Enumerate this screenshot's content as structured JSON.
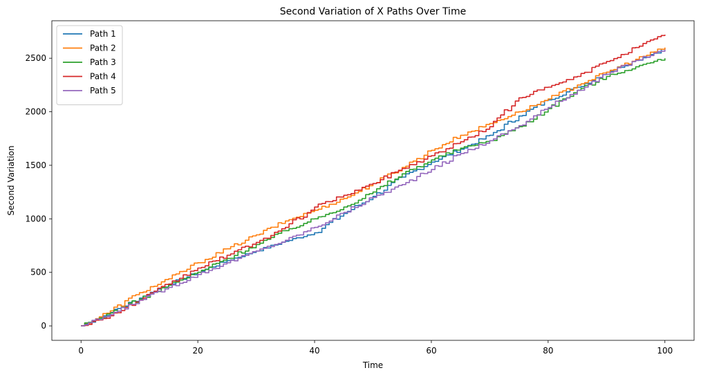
{
  "chart_data": {
    "type": "line",
    "title": "Second Variation of X Paths Over Time",
    "xlabel": "Time",
    "ylabel": "Second Variation",
    "xlim": [
      -5,
      105
    ],
    "ylim": [
      -135,
      2850
    ],
    "xticks": [
      0,
      20,
      40,
      60,
      80,
      100
    ],
    "yticks": [
      0,
      500,
      1000,
      1500,
      2000,
      2500
    ],
    "grid": false,
    "legend_position": "top-left",
    "x": [
      0,
      5,
      10,
      15,
      20,
      25,
      30,
      35,
      40,
      45,
      50,
      55,
      60,
      65,
      70,
      75,
      80,
      85,
      90,
      95,
      100
    ],
    "series": [
      {
        "name": "Path 1",
        "color": "#1f77b4",
        "values": [
          0,
          125,
          260,
          390,
          500,
          610,
          700,
          790,
          870,
          1050,
          1210,
          1390,
          1530,
          1650,
          1780,
          1960,
          2110,
          2230,
          2370,
          2480,
          2590
        ]
      },
      {
        "name": "Path 2",
        "color": "#ff7f0e",
        "values": [
          0,
          140,
          310,
          440,
          590,
          720,
          850,
          980,
          1080,
          1190,
          1330,
          1480,
          1640,
          1780,
          1890,
          2000,
          2120,
          2250,
          2370,
          2490,
          2600
        ]
      },
      {
        "name": "Path 3",
        "color": "#2ca02c",
        "values": [
          0,
          120,
          250,
          380,
          500,
          630,
          760,
          890,
          1000,
          1110,
          1250,
          1420,
          1550,
          1660,
          1730,
          1860,
          2030,
          2200,
          2330,
          2420,
          2500
        ]
      },
      {
        "name": "Path 4",
        "color": "#d62728",
        "values": [
          0,
          95,
          240,
          390,
          540,
          660,
          780,
          920,
          1110,
          1220,
          1330,
          1470,
          1590,
          1720,
          1860,
          2130,
          2230,
          2330,
          2470,
          2600,
          2720
        ]
      },
      {
        "name": "Path 5",
        "color": "#9467bd",
        "values": [
          0,
          105,
          240,
          360,
          480,
          590,
          700,
          800,
          920,
          1060,
          1200,
          1320,
          1460,
          1610,
          1730,
          1870,
          2040,
          2200,
          2350,
          2480,
          2580
        ]
      }
    ]
  }
}
